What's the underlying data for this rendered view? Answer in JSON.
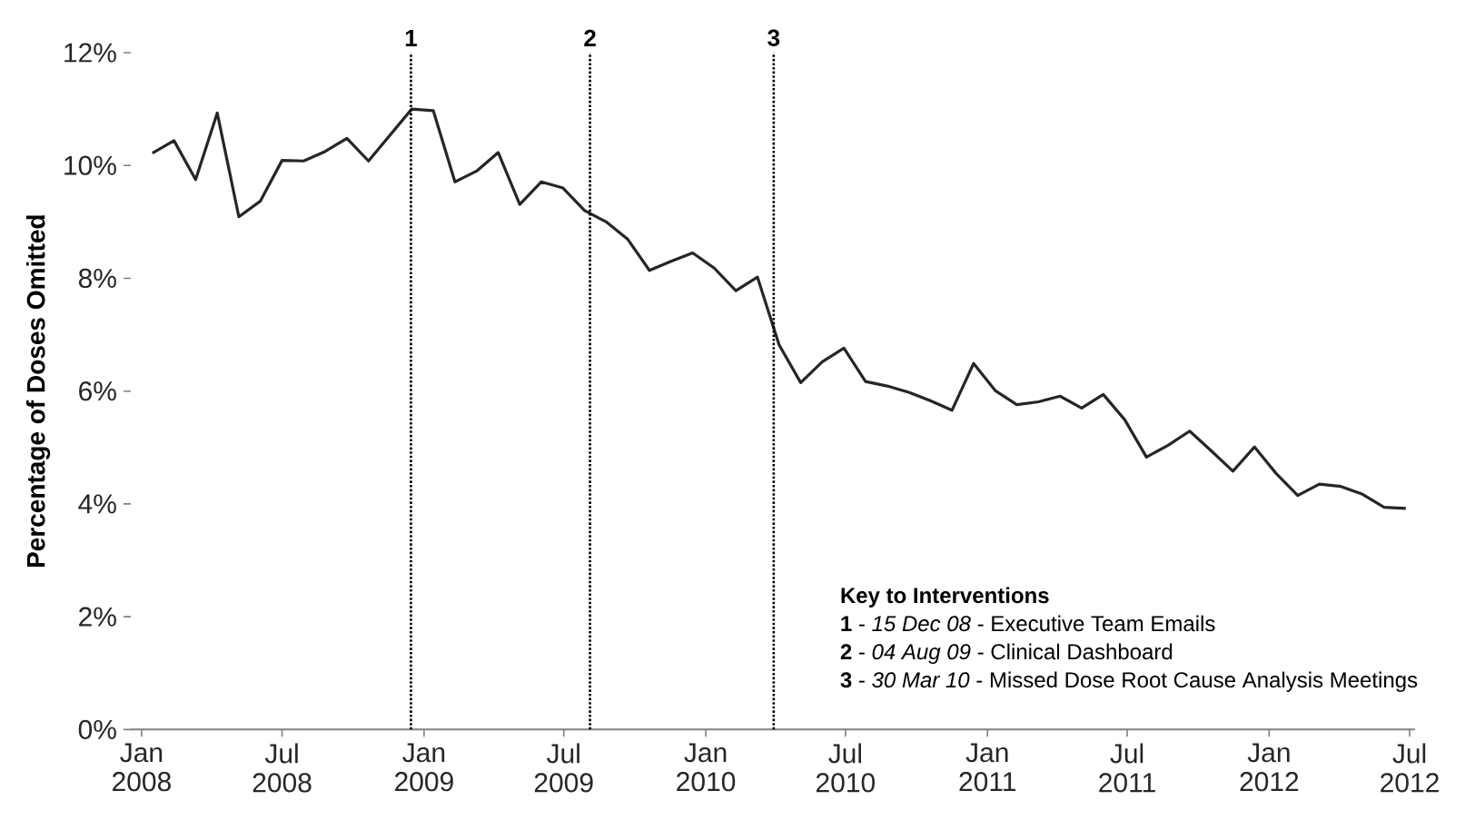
{
  "chart_data": {
    "type": "line",
    "ylabel": "Percentage of Doses Omitted",
    "x": [
      "2008-01-15",
      "2008-02-12",
      "2008-03-11",
      "2008-04-08",
      "2008-05-06",
      "2008-06-03",
      "2008-07-01",
      "2008-07-29",
      "2008-08-26",
      "2008-09-23",
      "2008-10-21",
      "2008-11-18",
      "2008-12-16",
      "2009-01-13",
      "2009-02-10",
      "2009-03-10",
      "2009-04-07",
      "2009-05-05",
      "2009-06-02",
      "2009-06-30",
      "2009-07-28",
      "2009-08-25",
      "2009-09-22",
      "2009-10-20",
      "2009-11-17",
      "2009-12-15",
      "2010-01-12",
      "2010-02-09",
      "2010-03-09",
      "2010-04-06",
      "2010-05-04",
      "2010-06-01",
      "2010-06-29",
      "2010-07-27",
      "2010-08-24",
      "2010-09-21",
      "2010-10-19",
      "2010-11-16",
      "2010-12-14",
      "2011-01-11",
      "2011-02-08",
      "2011-03-08",
      "2011-04-05",
      "2011-05-03",
      "2011-05-31",
      "2011-06-28",
      "2011-07-26",
      "2011-08-23",
      "2011-09-20",
      "2011-10-18",
      "2011-11-15",
      "2011-12-13",
      "2012-01-10",
      "2012-02-07",
      "2012-03-06",
      "2012-04-03",
      "2012-05-01",
      "2012-05-29",
      "2012-06-26"
    ],
    "series": [
      {
        "color": "#262626",
        "values": [
          10.22,
          10.44,
          9.75,
          10.93,
          9.09,
          9.37,
          10.09,
          10.08,
          10.25,
          10.48,
          10.08,
          10.54,
          11.0,
          10.97,
          9.71,
          9.9,
          10.23,
          9.31,
          9.71,
          9.6,
          9.2,
          9.0,
          8.69,
          8.14,
          8.3,
          8.45,
          8.18,
          7.78,
          8.02,
          6.82,
          6.15,
          6.52,
          6.76,
          6.17,
          6.09,
          5.98,
          5.83,
          5.66,
          6.49,
          6.01,
          5.76,
          5.81,
          5.91,
          5.7,
          5.94,
          5.49,
          4.83,
          5.04,
          5.29,
          4.94,
          4.58,
          5.01,
          4.54,
          4.15,
          4.35,
          4.31,
          4.17,
          3.94,
          3.92
        ]
      }
    ],
    "xlim": [
      "2007-12-18",
      "2012-07-08"
    ],
    "xticks": [
      {
        "value": "2008-01",
        "label": "Jan 2008"
      },
      {
        "value": "2008-07",
        "label": "Jul 2008"
      },
      {
        "value": "2009-01",
        "label": "Jan 2009"
      },
      {
        "value": "2009-07",
        "label": "Jul 2009"
      },
      {
        "value": "2010-01",
        "label": "Jan 2010"
      },
      {
        "value": "2010-07",
        "label": "Jul 2010"
      },
      {
        "value": "2011-01",
        "label": "Jan 2011"
      },
      {
        "value": "2011-07",
        "label": "Jul 2011"
      },
      {
        "value": "2012-01",
        "label": "Jan 2012"
      },
      {
        "value": "2012-07",
        "label": "Jul 2012"
      }
    ],
    "ylim": [
      0,
      12
    ],
    "yticks": [
      {
        "value": 0,
        "label": "0%"
      },
      {
        "value": 2,
        "label": "2%"
      },
      {
        "value": 4,
        "label": "4%"
      },
      {
        "value": 6,
        "label": "6%"
      },
      {
        "value": 8,
        "label": "8%"
      },
      {
        "value": 10,
        "label": "10%"
      },
      {
        "value": 12,
        "label": "12%"
      }
    ],
    "ref_lines": [
      {
        "axis": "x",
        "value": "2008-12-15",
        "label": "1",
        "color": "#000000",
        "line_style": "dotted"
      },
      {
        "axis": "x",
        "value": "2009-08-04",
        "label": "2",
        "color": "#000000",
        "line_style": "dotted"
      },
      {
        "axis": "x",
        "value": "2010-03-30",
        "label": "3",
        "color": "#000000",
        "line_style": "dotted"
      }
    ],
    "annotations": [
      "Key to Interventions",
      "**1** - *15 Dec 08* - Executive Team Emails",
      "**2** - *04 Aug 09* - Clinical Dashboard",
      "**3** - *30 Mar 10* - Missed Dose Root Cause Analysis Meetings"
    ],
    "grid": false,
    "marker": "none",
    "line_style": "solid"
  }
}
